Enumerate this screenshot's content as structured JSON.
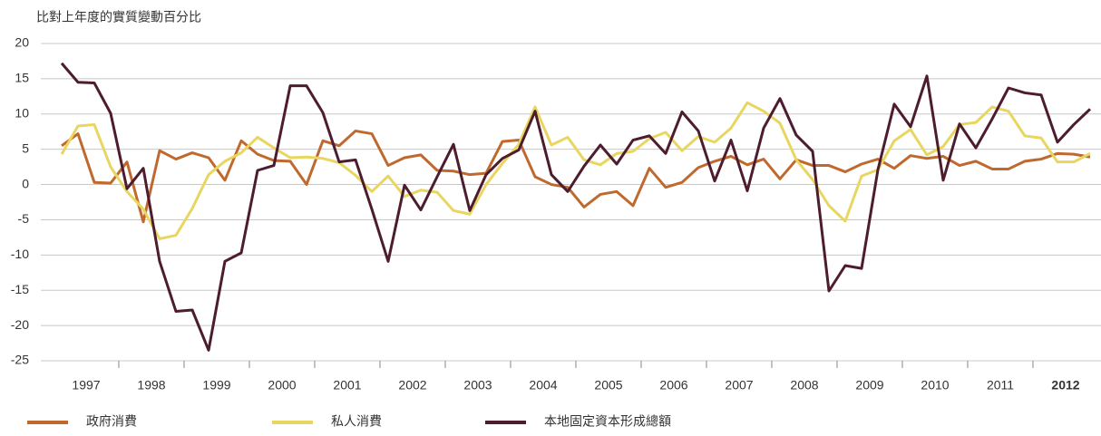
{
  "chart_data": {
    "type": "line",
    "title": "比對上年度的實質變動百分比",
    "categories": [
      null,
      "1997",
      null,
      null,
      null,
      "1998",
      null,
      null,
      null,
      "1999",
      null,
      null,
      null,
      "2000",
      null,
      null,
      null,
      "2001",
      null,
      null,
      null,
      "2002",
      null,
      null,
      null,
      "2003",
      null,
      null,
      null,
      "2004",
      null,
      null,
      null,
      "2005",
      null,
      null,
      null,
      "2006",
      null,
      null,
      null,
      "2007",
      null,
      null,
      null,
      "2008",
      null,
      null,
      null,
      "2009",
      null,
      null,
      null,
      "2010",
      null,
      null,
      null,
      "2011",
      null,
      null,
      null,
      "2012",
      null,
      null
    ],
    "series": [
      {
        "name": "政府消費",
        "color": "#c0692e",
        "values": [
          5.5,
          7.2,
          0.3,
          0.2,
          3.2,
          -5.3,
          4.8,
          3.6,
          4.5,
          3.8,
          0.6,
          6.2,
          4.3,
          3.4,
          3.3,
          0.0,
          6.2,
          5.5,
          7.6,
          7.2,
          2.7,
          3.8,
          4.2,
          2.0,
          1.9,
          1.4,
          1.6,
          6.1,
          6.3,
          1.1,
          0.0,
          -0.4,
          -3.2,
          -1.4,
          -1.0,
          -3.0,
          2.3,
          -0.4,
          0.3,
          2.4,
          3.3,
          4.0,
          2.8,
          3.6,
          0.8,
          3.5,
          2.7,
          2.7,
          1.8,
          2.9,
          3.6,
          2.3,
          4.1,
          3.7,
          4.0,
          2.7,
          3.3,
          2.2,
          2.2,
          3.3,
          3.6,
          4.4,
          4.3,
          3.9
        ]
      },
      {
        "name": "私人消費",
        "color": "#e8d660",
        "values": [
          4.3,
          8.3,
          8.5,
          2.5,
          -1.0,
          -3.5,
          -7.7,
          -7.2,
          -3.4,
          1.4,
          3.3,
          4.5,
          6.7,
          5.2,
          3.8,
          3.9,
          3.7,
          3.1,
          1.3,
          -1.0,
          1.2,
          -1.7,
          -0.8,
          -1.1,
          -3.7,
          -4.2,
          0.0,
          3.0,
          5.7,
          11.0,
          5.6,
          6.7,
          3.5,
          2.8,
          4.4,
          4.7,
          6.5,
          7.4,
          4.8,
          6.8,
          6.0,
          8.0,
          11.6,
          10.4,
          8.7,
          3.5,
          0.7,
          -3.0,
          -5.2,
          1.2,
          2.1,
          6.2,
          7.8,
          4.2,
          5.4,
          8.5,
          8.8,
          11.0,
          10.4,
          6.9,
          6.6,
          3.2,
          3.2,
          4.4
        ]
      },
      {
        "name": "本地固定資本形成總額",
        "color": "#4d1c2e",
        "values": [
          17.2,
          14.5,
          14.4,
          10.1,
          -0.6,
          2.3,
          -10.9,
          -18.0,
          -17.8,
          -23.5,
          -10.9,
          -9.7,
          2.0,
          2.7,
          14.0,
          14.0,
          10.2,
          3.2,
          3.5,
          -3.5,
          -10.9,
          -0.1,
          -3.6,
          1.1,
          5.7,
          -3.7,
          1.4,
          3.7,
          4.9,
          10.4,
          1.4,
          -1.0,
          2.6,
          5.6,
          2.9,
          6.3,
          6.9,
          4.4,
          10.3,
          7.6,
          0.5,
          6.3,
          -0.9,
          8.0,
          12.2,
          7.0,
          4.7,
          -15.1,
          -11.5,
          -11.9,
          2.1,
          11.4,
          8.2,
          15.4,
          0.6,
          8.6,
          5.2,
          9.3,
          13.7,
          13.0,
          12.7,
          6.0,
          8.5,
          10.7
        ]
      }
    ],
    "ylim": [
      -25,
      20
    ],
    "yticks": [
      -25,
      -20,
      -15,
      -10,
      -5,
      0,
      5,
      10,
      15,
      20
    ],
    "grid": true
  }
}
